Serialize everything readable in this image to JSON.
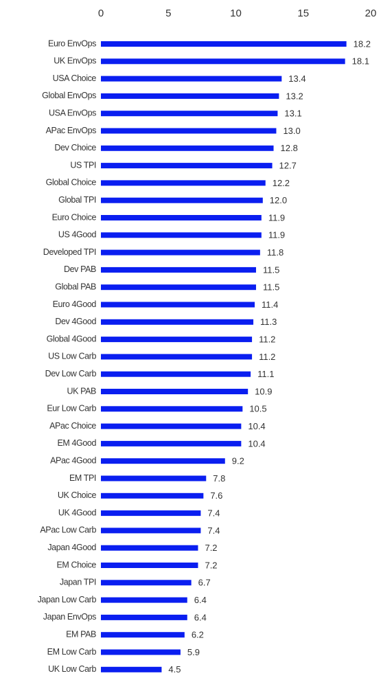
{
  "chart_data": {
    "type": "hbar",
    "categories": [
      "Euro EnvOps",
      "UK EnvOps",
      "USA Choice",
      "Global EnvOps",
      "USA EnvOps",
      "APac EnvOps",
      "Dev Choice",
      "US TPI",
      "Global Choice",
      "Global TPI",
      "Euro Choice",
      "US 4Good",
      "Developed TPI",
      "Dev PAB",
      "Global PAB",
      "Euro 4Good",
      "Dev 4Good",
      "Global 4Good",
      "US Low Carb",
      "Dev Low Carb",
      "UK PAB",
      "Eur Low Carb",
      "APac Choice",
      "EM 4Good",
      "APac 4Good",
      "EM TPI",
      "UK Choice",
      "UK 4Good",
      "APac Low Carb",
      "Japan 4Good",
      "EM Choice",
      "Japan TPI",
      "Japan Low Carb",
      "Japan EnvOps",
      "EM PAB",
      "EM Low Carb",
      "UK Low Carb"
    ],
    "values": [
      18.2,
      18.1,
      13.4,
      13.2,
      13.1,
      13.0,
      12.8,
      12.7,
      12.2,
      12.0,
      11.9,
      11.9,
      11.8,
      11.5,
      11.5,
      11.4,
      11.3,
      11.2,
      11.2,
      11.1,
      10.9,
      10.5,
      10.4,
      10.4,
      9.2,
      7.8,
      7.6,
      7.4,
      7.4,
      7.2,
      7.2,
      6.7,
      6.4,
      6.4,
      6.2,
      5.9,
      4.5
    ],
    "value_labels": [
      "18.2",
      "18.1",
      "13.4",
      "13.2",
      "13.1",
      "13.0",
      "12.8",
      "12.7",
      "12.2",
      "12.0",
      "11.9",
      "11.9",
      "11.8",
      "11.5",
      "11.5",
      "11.4",
      "11.3",
      "11.2",
      "11.2",
      "11.1",
      "10.9",
      "10.5",
      "10.4",
      "10.4",
      "9.2",
      "7.8",
      "7.6",
      "7.4",
      "7.4",
      "7.2",
      "7.2",
      "6.7",
      "6.4",
      "6.4",
      "6.2",
      "5.9",
      "4.5"
    ],
    "color": "#0a1ef0",
    "xlim": [
      0,
      20
    ],
    "xticks": [
      0,
      5,
      10,
      15,
      20
    ]
  }
}
